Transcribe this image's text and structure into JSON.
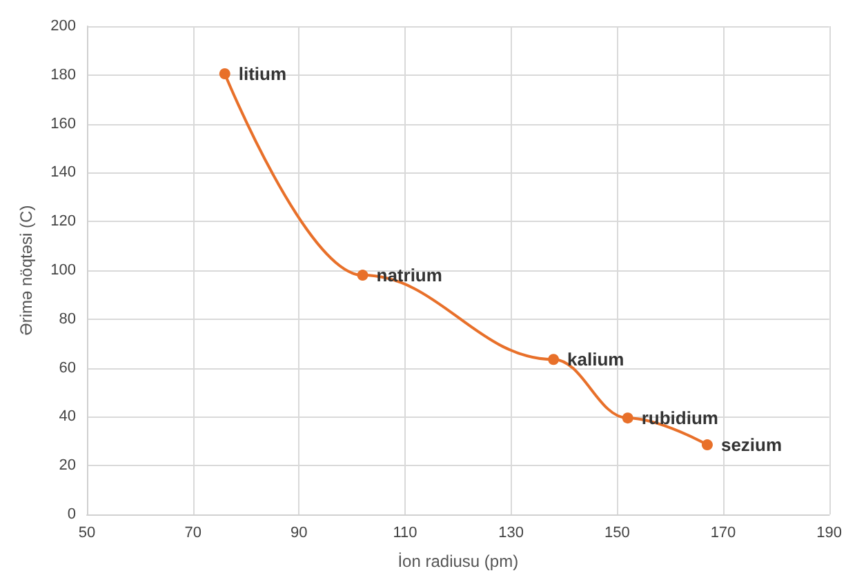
{
  "chart_data": {
    "type": "line",
    "xlabel": "İon radiusu (pm)",
    "ylabel": "Ərimə nöqtəsi (C)",
    "x": [
      76,
      102,
      138,
      152,
      167
    ],
    "series": [
      {
        "color": "#e8702a",
        "values": [
          180.5,
          98,
          63.5,
          39.5,
          28.5
        ]
      }
    ],
    "xlim": [
      50,
      190
    ],
    "xticks": [
      50,
      70,
      90,
      110,
      130,
      150,
      170,
      190
    ],
    "ylim": [
      0,
      200
    ],
    "yticks": [
      0,
      20,
      40,
      60,
      80,
      100,
      120,
      140,
      160,
      180,
      200
    ],
    "grid": true,
    "marker": "circle",
    "line_style": "solid",
    "annotations": [
      {
        "text": "litium",
        "x": 76,
        "y": 180.5
      },
      {
        "text": "natrium",
        "x": 102,
        "y": 98
      },
      {
        "text": "kalium",
        "x": 138,
        "y": 63.5
      },
      {
        "text": "rubidium",
        "x": 152,
        "y": 39.5
      },
      {
        "text": "sezium",
        "x": 167,
        "y": 28.5
      }
    ]
  }
}
